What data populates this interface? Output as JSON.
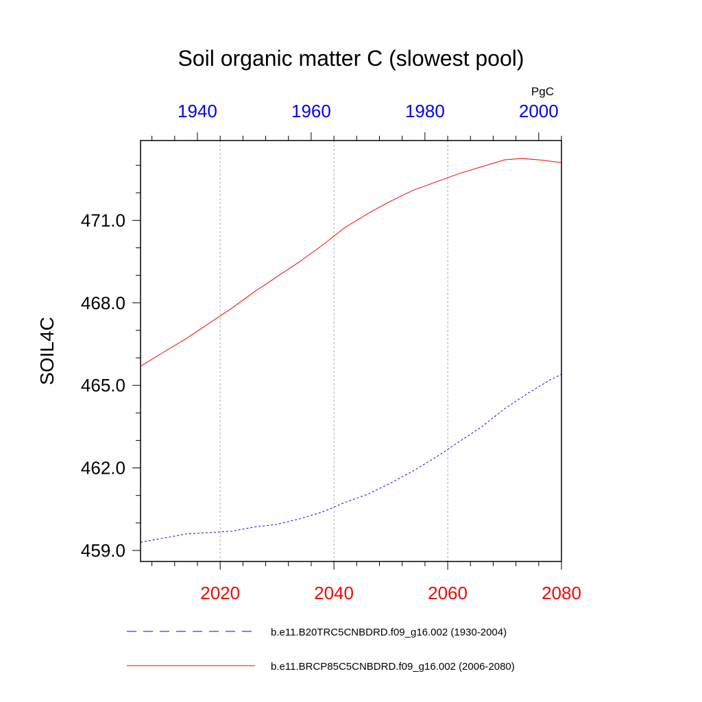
{
  "chart_data": {
    "type": "line",
    "title": "Soil organic matter C (slowest pool)",
    "ylabel": "SOIL4C",
    "units": "PgC",
    "ylim": [
      458.6,
      473.9
    ],
    "yticks": [
      459.0,
      462.0,
      465.0,
      468.0,
      471.0
    ],
    "ytick_labels": [
      "459.0",
      "462.0",
      "465.0",
      "468.0",
      "471.0"
    ],
    "bottom_axis": {
      "xlim": [
        2006,
        2080
      ],
      "ticks": [
        2020,
        2040,
        2060,
        2080
      ],
      "tick_labels": [
        "2020",
        "2040",
        "2060",
        "2080"
      ],
      "color": "#ff0000"
    },
    "top_axis": {
      "xlim": [
        1930,
        2004
      ],
      "ticks": [
        1940,
        1960,
        1980,
        2000
      ],
      "tick_labels": [
        "1940",
        "1960",
        "1980",
        "2000"
      ],
      "color": "#0000ff"
    },
    "grid": "vertical dotted at bottom-axis ticks",
    "series": [
      {
        "name": "b.e11.B20TRC5CNBDRD.f09_g16.002 (1930-2004)",
        "axis": "top",
        "color": "#0000ff",
        "dash": "dashed",
        "x": [
          1930,
          1934,
          1938,
          1942,
          1946,
          1950,
          1954,
          1958,
          1962,
          1966,
          1970,
          1974,
          1978,
          1982,
          1986,
          1990,
          1994,
          1998,
          2002,
          2004
        ],
        "y": [
          459.3,
          459.45,
          459.6,
          459.65,
          459.7,
          459.85,
          459.95,
          460.15,
          460.4,
          460.75,
          461.05,
          461.45,
          461.9,
          462.4,
          462.95,
          463.5,
          464.15,
          464.7,
          465.2,
          465.4
        ]
      },
      {
        "name": "b.e11.BRCP85C5CNBDRD.f09_g16.002 (2006-2080)",
        "axis": "bottom",
        "color": "#ff0000",
        "dash": "solid",
        "x": [
          2006,
          2010,
          2014,
          2018,
          2022,
          2026,
          2030,
          2034,
          2038,
          2042,
          2046,
          2050,
          2054,
          2058,
          2062,
          2066,
          2070,
          2073,
          2076,
          2080
        ],
        "y": [
          465.7,
          466.2,
          466.7,
          467.25,
          467.8,
          468.4,
          468.95,
          469.5,
          470.1,
          470.75,
          471.25,
          471.7,
          472.1,
          472.4,
          472.7,
          472.95,
          473.2,
          473.25,
          473.2,
          473.1
        ]
      }
    ],
    "legend": {
      "placement": "bottom",
      "entries": [
        "b.e11.B20TRC5CNBDRD.f09_g16.002 (1930-2004)",
        "b.e11.BRCP85C5CNBDRD.f09_g16.002 (2006-2080)"
      ]
    }
  }
}
